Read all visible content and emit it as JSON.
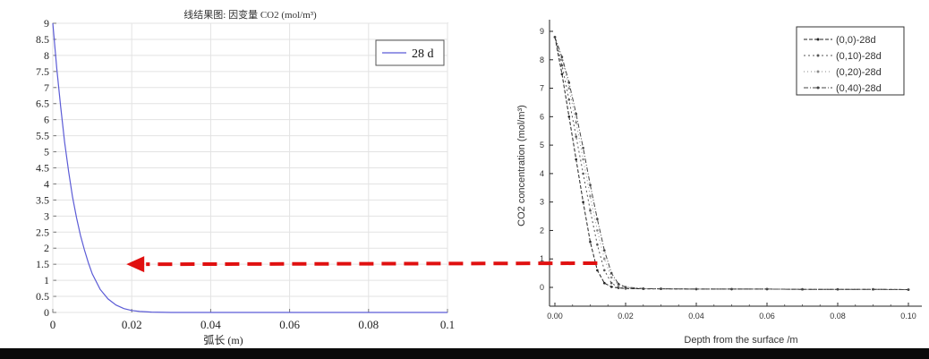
{
  "chart_data": [
    {
      "type": "line",
      "title": "线结果图: 因变量 CO2 (mol/m³)",
      "xlabel": "弧长 (m)",
      "ylabel": "",
      "xlim": [
        0,
        0.1
      ],
      "ylim": [
        0,
        9
      ],
      "x_ticks": [
        "0",
        "0.02",
        "0.04",
        "0.06",
        "0.08",
        "0.1"
      ],
      "y_ticks": [
        "0",
        "0.5",
        "1",
        "1.5",
        "2",
        "2.5",
        "3",
        "3.5",
        "4",
        "4.5",
        "5",
        "5.5",
        "6",
        "6.5",
        "7",
        "7.5",
        "8",
        "8.5",
        "9"
      ],
      "grid": true,
      "legend_position": "top-right",
      "series": [
        {
          "name": "28 d",
          "color": "#5b5bd6",
          "x": [
            0,
            0.001,
            0.002,
            0.003,
            0.004,
            0.005,
            0.006,
            0.007,
            0.008,
            0.009,
            0.01,
            0.012,
            0.014,
            0.016,
            0.018,
            0.02,
            0.022,
            0.025,
            0.03,
            0.04,
            0.06,
            0.08,
            0.1
          ],
          "y": [
            9.0,
            7.6,
            6.4,
            5.3,
            4.4,
            3.6,
            2.95,
            2.4,
            1.95,
            1.55,
            1.2,
            0.72,
            0.42,
            0.23,
            0.12,
            0.06,
            0.03,
            0.01,
            0.0,
            0.0,
            0.0,
            0.0,
            0.0
          ]
        }
      ]
    },
    {
      "type": "scatter",
      "title": "",
      "xlabel": "Depth from the surface /m",
      "ylabel": "CO2 concentration (mol/m³)",
      "xlim": [
        0,
        0.1
      ],
      "ylim": [
        -0.3,
        9.5
      ],
      "x_ticks": [
        "0.00",
        "0.02",
        "0.04",
        "0.06",
        "0.08",
        "0.10"
      ],
      "y_ticks": [
        "0",
        "1",
        "2",
        "3",
        "4",
        "5",
        "6",
        "7",
        "8",
        "9"
      ],
      "grid": false,
      "legend_position": "top-right",
      "series": [
        {
          "name": "(0,0)-28d",
          "color": "#222222",
          "x": [
            0,
            0.002,
            0.004,
            0.006,
            0.008,
            0.01,
            0.012,
            0.014,
            0.016,
            0.018,
            0.02,
            0.025,
            0.03,
            0.04,
            0.05,
            0.06,
            0.07,
            0.08,
            0.09,
            0.1
          ],
          "y": [
            8.8,
            7.5,
            6.0,
            4.5,
            3.0,
            1.6,
            0.6,
            0.15,
            0.02,
            -0.02,
            -0.04,
            -0.05,
            -0.05,
            -0.06,
            -0.06,
            -0.06,
            -0.07,
            -0.07,
            -0.07,
            -0.08
          ]
        },
        {
          "name": "(0,10)-28d",
          "color": "#555555",
          "x": [
            0,
            0.002,
            0.004,
            0.006,
            0.008,
            0.01,
            0.012,
            0.014,
            0.016,
            0.018,
            0.02,
            0.025,
            0.03,
            0.04,
            0.05,
            0.06,
            0.07,
            0.08,
            0.09,
            0.1
          ],
          "y": [
            8.8,
            7.8,
            6.6,
            5.3,
            4.0,
            2.7,
            1.5,
            0.6,
            0.15,
            0.0,
            -0.03,
            -0.05,
            -0.05,
            -0.06,
            -0.06,
            -0.06,
            -0.07,
            -0.07,
            -0.07,
            -0.08
          ]
        },
        {
          "name": "(0,20)-28d",
          "color": "#8a8a8a",
          "x": [
            0,
            0.002,
            0.004,
            0.006,
            0.008,
            0.01,
            0.012,
            0.014,
            0.016,
            0.018,
            0.02,
            0.025,
            0.03,
            0.04,
            0.05,
            0.06,
            0.07,
            0.08,
            0.09,
            0.1
          ],
          "y": [
            8.8,
            8.0,
            7.0,
            5.8,
            4.5,
            3.2,
            2.0,
            1.0,
            0.35,
            0.08,
            0.0,
            -0.04,
            -0.05,
            -0.06,
            -0.06,
            -0.06,
            -0.07,
            -0.07,
            -0.07,
            -0.08
          ]
        },
        {
          "name": "(0,40)-28d",
          "color": "#444444",
          "x": [
            0,
            0.002,
            0.004,
            0.006,
            0.008,
            0.01,
            0.012,
            0.014,
            0.016,
            0.018,
            0.02,
            0.025,
            0.03,
            0.04,
            0.05,
            0.06,
            0.07,
            0.08,
            0.09,
            0.1
          ],
          "y": [
            8.8,
            8.1,
            7.2,
            6.1,
            4.9,
            3.6,
            2.4,
            1.3,
            0.5,
            0.12,
            0.01,
            -0.04,
            -0.05,
            -0.06,
            -0.06,
            -0.06,
            -0.07,
            -0.07,
            -0.07,
            -0.08
          ]
        }
      ]
    }
  ],
  "annotation": {
    "arrow_color": "#e01010",
    "from_value_y": 0.85,
    "to_value_y": 1.5
  }
}
